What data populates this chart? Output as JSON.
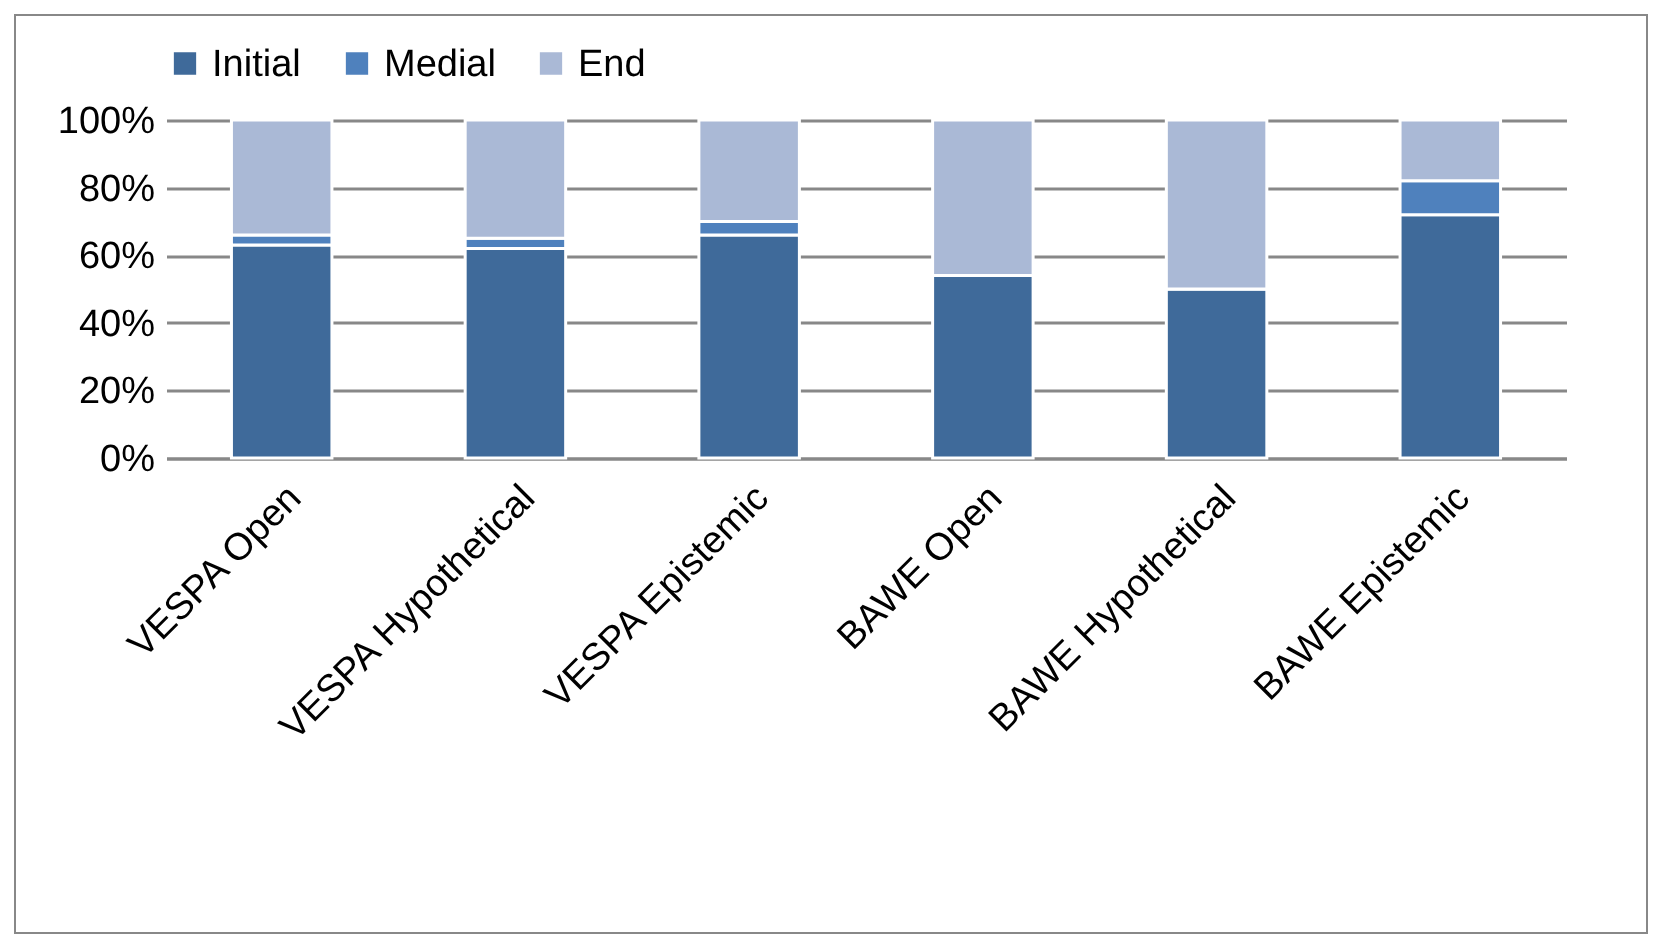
{
  "chart_data": {
    "type": "bar",
    "stacked": true,
    "categories": [
      "VESPA Open",
      "VESPA Hypothetical",
      "VESPA Epistemic",
      "BAWE Open",
      "BAWE Hypothetical",
      "BAWE Epistemic"
    ],
    "series": [
      {
        "name": "Initial",
        "color": "#3f6a9a",
        "values": [
          63,
          62,
          66,
          54,
          50,
          72
        ]
      },
      {
        "name": "Medial",
        "color": "#4f81bd",
        "values": [
          3,
          3,
          4,
          0,
          0,
          10
        ]
      },
      {
        "name": "End",
        "color": "#aab9d6",
        "values": [
          34,
          35,
          30,
          46,
          50,
          18
        ]
      }
    ],
    "ylim": [
      0,
      100
    ],
    "yticks": [
      {
        "value": 0,
        "label": "0%"
      },
      {
        "value": 20,
        "label": "20%"
      },
      {
        "value": 40,
        "label": "40%"
      },
      {
        "value": 60,
        "label": "60%"
      },
      {
        "value": 80,
        "label": "80%"
      },
      {
        "value": 100,
        "label": "100%"
      }
    ],
    "grid": "y",
    "legend": "top"
  }
}
